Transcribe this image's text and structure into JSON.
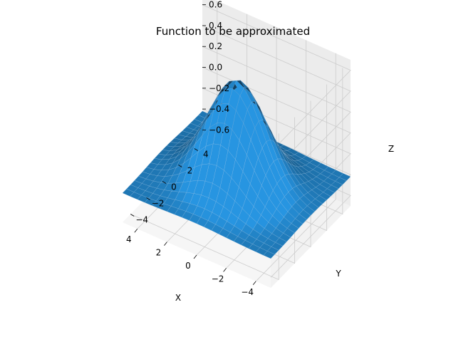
{
  "chart_data": {
    "type": "surface3d",
    "title": "Function to be approximated",
    "xlabel": "X",
    "ylabel": "Y",
    "zlabel": "Z",
    "x_range": [
      -5,
      5
    ],
    "y_range": [
      -5,
      5
    ],
    "z_range": [
      -0.7,
      0.7
    ],
    "x_ticks": [
      -4,
      -2,
      0,
      2,
      4
    ],
    "y_ticks": [
      -4,
      -2,
      0,
      2,
      4
    ],
    "z_ticks": [
      -0.6,
      -0.4,
      -0.2,
      0.0,
      0.2,
      0.4,
      0.6
    ],
    "x_tick_labels": [
      "−4",
      "−2",
      "0",
      "2",
      "4"
    ],
    "y_tick_labels": [
      "−4",
      "−2",
      "0",
      "2",
      "4"
    ],
    "z_tick_labels": [
      "−0.6",
      "−0.4",
      "−0.2",
      "0.0",
      "0.2",
      "0.4",
      "0.6"
    ],
    "surface_peak": {
      "x": 0,
      "y": 0,
      "z": 0.58
    },
    "surface_edge_level": -0.42,
    "grid": true,
    "surface_color": "#1f77b4",
    "pane_color": "#f2f2f2",
    "grid_color": "#cccccc"
  }
}
